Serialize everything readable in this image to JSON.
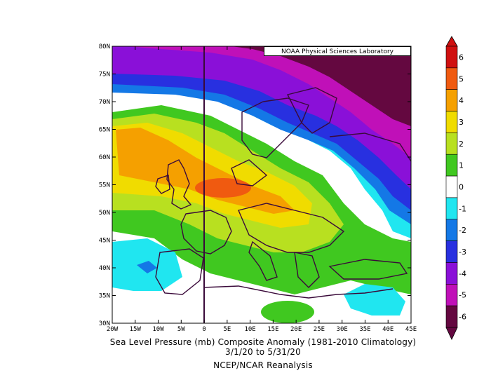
{
  "title_line1": "Sea Level Pressure (mb) Composite Anomaly (1981-2010 Climatology)",
  "title_line2": "3/1/20  to  5/31/20",
  "title_line3": "NCEP/NCAR Reanalysis",
  "credit": "NOAA Physical Sciences Laboratory",
  "lat_labels": [
    "80N",
    "75N",
    "70N",
    "65N",
    "60N",
    "55N",
    "50N",
    "45N",
    "40N",
    "35N",
    "30N"
  ],
  "lon_labels": [
    "20W",
    "15W",
    "10W",
    "5W",
    "0",
    "5E",
    "10E",
    "15E",
    "20E",
    "25E",
    "30E",
    "35E",
    "40E",
    "45E"
  ],
  "colorbar": {
    "labels": [
      "6",
      "5",
      "4",
      "3",
      "2",
      "1",
      "0",
      "-1",
      "-2",
      "-3",
      "-4",
      "-5",
      "-6"
    ],
    "colors": [
      "#d01010",
      "#f05a10",
      "#f5a000",
      "#f0dc00",
      "#b8e020",
      "#40c820",
      "#ffffff",
      "#20e6f0",
      "#1478e6",
      "#2830e0",
      "#8a10d8",
      "#c010b8",
      "#640840"
    ]
  }
}
